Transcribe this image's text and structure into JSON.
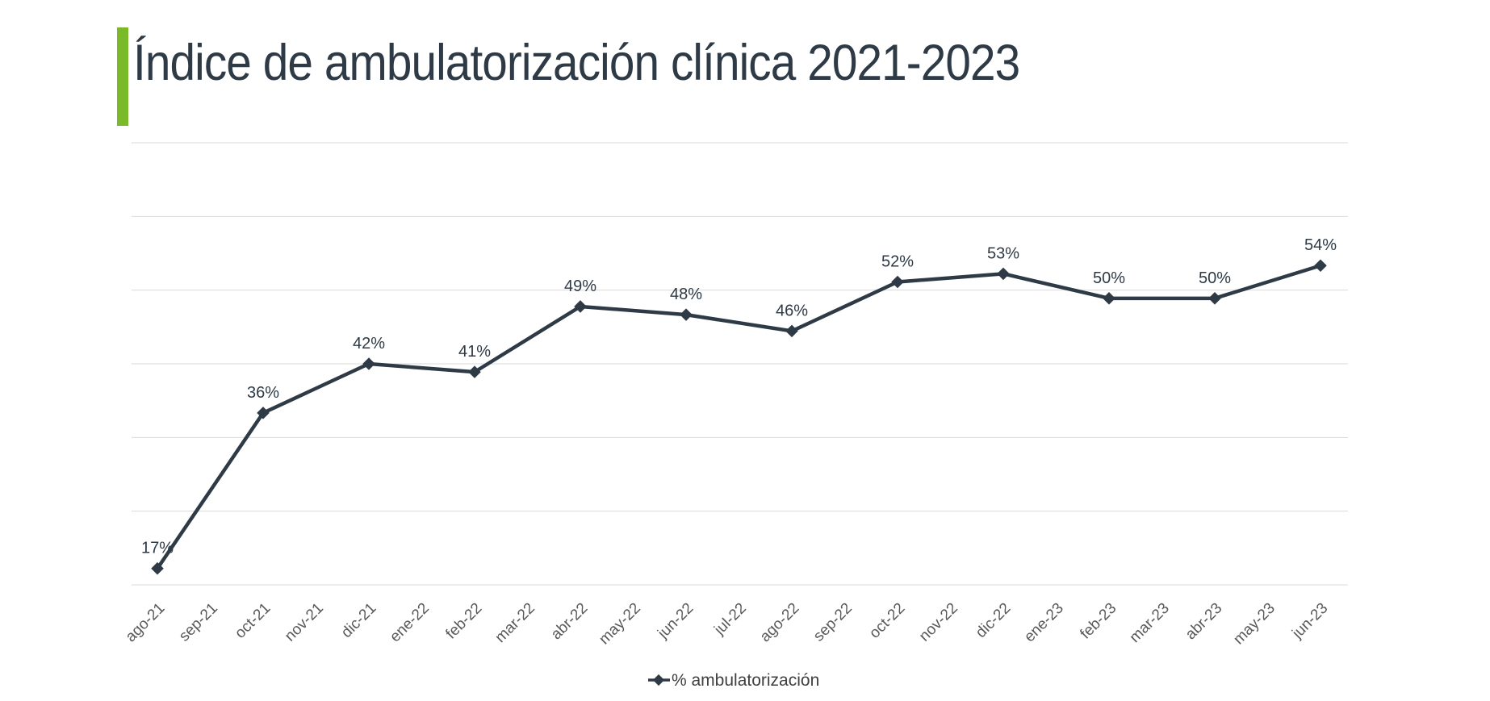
{
  "header": {
    "title": "Índice de ambulatorización clínica 2021-2023"
  },
  "colors": {
    "accent": "#7ab928",
    "line": "#2e3a46",
    "grid": "#d9d9d9"
  },
  "chart_data": {
    "type": "line",
    "title": "Índice de ambulatorización clínica 2021-2023",
    "xlabel": "",
    "ylabel": "",
    "categories": [
      "ago-21",
      "sep-21",
      "oct-21",
      "nov-21",
      "dic-21",
      "ene-22",
      "feb-22",
      "mar-22",
      "abr-22",
      "may-22",
      "jun-22",
      "jul-22",
      "ago-22",
      "sep-22",
      "oct-22",
      "nov-22",
      "dic-22",
      "ene-23",
      "feb-23",
      "mar-23",
      "abr-23",
      "may-23",
      "jun-23"
    ],
    "series": [
      {
        "name": "% ambulatorización",
        "points": [
          {
            "x": "ago-21",
            "y": 17,
            "label": "17%"
          },
          {
            "x": "oct-21",
            "y": 36,
            "label": "36%"
          },
          {
            "x": "dic-21",
            "y": 42,
            "label": "42%"
          },
          {
            "x": "feb-22",
            "y": 41,
            "label": "41%"
          },
          {
            "x": "abr-22",
            "y": 49,
            "label": "49%"
          },
          {
            "x": "jun-22",
            "y": 48,
            "label": "48%"
          },
          {
            "x": "ago-22",
            "y": 46,
            "label": "46%"
          },
          {
            "x": "oct-22",
            "y": 52,
            "label": "52%"
          },
          {
            "x": "dic-22",
            "y": 53,
            "label": "53%"
          },
          {
            "x": "feb-23",
            "y": 50,
            "label": "50%"
          },
          {
            "x": "abr-23",
            "y": 50,
            "label": "50%"
          },
          {
            "x": "jun-23",
            "y": 54,
            "label": "54%"
          }
        ]
      }
    ],
    "ylim": [
      15,
      69
    ],
    "y_gridlines": [
      15,
      24,
      33,
      42,
      51,
      60,
      69
    ],
    "grid": true,
    "y_axis_labels_shown": false,
    "legend": "bottom"
  }
}
